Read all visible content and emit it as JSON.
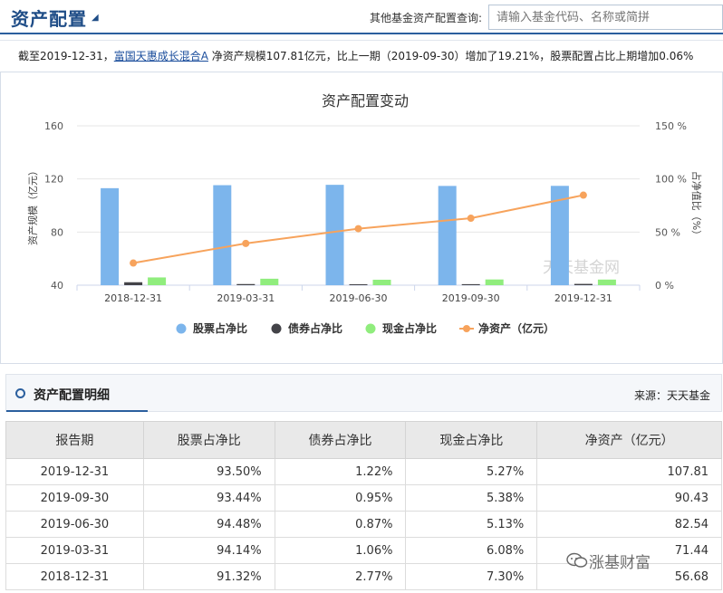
{
  "header": {
    "title": "资产配置",
    "search_label": "其他基金资产配置查询:",
    "search_placeholder": "请输入基金代码、名称或简拼"
  },
  "summary": {
    "prefix": "截至2019-12-31，",
    "fund_name": "富国天惠成长混合A",
    "suffix": " 净资产规模107.81亿元，比上一期（2019-09-30）增加了19.21%，股票配置占比上期增加0.06%"
  },
  "chart_data": {
    "type": "bar",
    "title": "资产配置变动",
    "categories": [
      "2018-12-31",
      "2019-03-31",
      "2019-06-30",
      "2019-09-30",
      "2019-12-31"
    ],
    "left_axis": {
      "label": "资产规模（亿元）",
      "ticks": [
        40,
        80,
        120,
        160
      ],
      "range": [
        40,
        160
      ]
    },
    "right_axis": {
      "label": "占净值比（%）",
      "ticks": [
        "0 %",
        "50 %",
        "100 %",
        "150 %"
      ],
      "range": [
        0,
        150
      ]
    },
    "series": [
      {
        "name": "股票占净比",
        "type": "bar",
        "axis": "right",
        "color": "#7cb5ec",
        "values": [
          91.32,
          94.14,
          94.48,
          93.44,
          93.5
        ]
      },
      {
        "name": "债券占净比",
        "type": "bar",
        "axis": "right",
        "color": "#434348",
        "values": [
          2.77,
          1.06,
          0.87,
          0.95,
          1.22
        ]
      },
      {
        "name": "现金占净比",
        "type": "bar",
        "axis": "right",
        "color": "#90ed7d",
        "values": [
          7.3,
          6.08,
          5.13,
          5.38,
          5.27
        ]
      },
      {
        "name": "净资产（亿元）",
        "type": "line",
        "axis": "left",
        "color": "#f7a35c",
        "values": [
          56.68,
          71.44,
          82.54,
          90.43,
          107.81
        ]
      }
    ],
    "watermark": "天天基金网"
  },
  "detail": {
    "title": "资产配置明细",
    "source": "来源：天天基金",
    "columns": [
      "报告期",
      "股票占净比",
      "债券占净比",
      "现金占净比",
      "净资产（亿元）"
    ],
    "rows": [
      [
        "2019-12-31",
        "93.50%",
        "1.22%",
        "5.27%",
        "107.81"
      ],
      [
        "2019-09-30",
        "93.44%",
        "0.95%",
        "5.38%",
        "90.43"
      ],
      [
        "2019-06-30",
        "94.48%",
        "0.87%",
        "5.13%",
        "82.54"
      ],
      [
        "2019-03-31",
        "94.14%",
        "1.06%",
        "6.08%",
        "71.44"
      ],
      [
        "2018-12-31",
        "91.32%",
        "2.77%",
        "7.30%",
        "56.68"
      ]
    ]
  },
  "overlay_watermark": "涨基财富"
}
